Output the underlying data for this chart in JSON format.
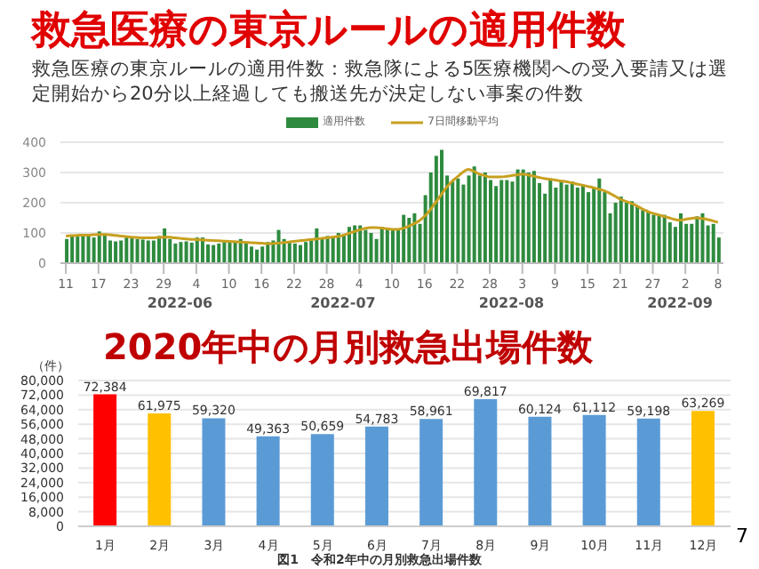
{
  "chart_data": [
    {
      "type": "bar",
      "title": "救急医療の東京ルールの適用件数",
      "subtitle": "救急医療の東京ルールの適用件数：救急隊による5医療機関への受入要請又は選定開始から20分以上経過しても搬送先が決定しない事案の件数",
      "x": [
        "2022-05-11",
        "2022-05-12",
        "2022-05-13",
        "2022-05-14",
        "2022-05-15",
        "2022-05-16",
        "2022-05-17",
        "2022-05-18",
        "2022-05-19",
        "2022-05-20",
        "2022-05-21",
        "2022-05-22",
        "2022-05-23",
        "2022-05-24",
        "2022-05-25",
        "2022-05-26",
        "2022-05-27",
        "2022-05-28",
        "2022-05-29",
        "2022-05-30",
        "2022-05-31",
        "2022-06-01",
        "2022-06-02",
        "2022-06-03",
        "2022-06-04",
        "2022-06-05",
        "2022-06-06",
        "2022-06-07",
        "2022-06-08",
        "2022-06-09",
        "2022-06-10",
        "2022-06-11",
        "2022-06-12",
        "2022-06-13",
        "2022-06-14",
        "2022-06-15",
        "2022-06-16",
        "2022-06-17",
        "2022-06-18",
        "2022-06-19",
        "2022-06-20",
        "2022-06-21",
        "2022-06-22",
        "2022-06-23",
        "2022-06-24",
        "2022-06-25",
        "2022-06-26",
        "2022-06-27",
        "2022-06-28",
        "2022-06-29",
        "2022-06-30",
        "2022-07-01",
        "2022-07-02",
        "2022-07-03",
        "2022-07-04",
        "2022-07-05",
        "2022-07-06",
        "2022-07-07",
        "2022-07-08",
        "2022-07-09",
        "2022-07-10",
        "2022-07-11",
        "2022-07-12",
        "2022-07-13",
        "2022-07-14",
        "2022-07-15",
        "2022-07-16",
        "2022-07-17",
        "2022-07-18",
        "2022-07-19",
        "2022-07-20",
        "2022-07-21",
        "2022-07-22",
        "2022-07-23",
        "2022-07-24",
        "2022-07-25",
        "2022-07-26",
        "2022-07-27",
        "2022-07-28",
        "2022-07-29",
        "2022-07-30",
        "2022-07-31",
        "2022-08-01",
        "2022-08-02",
        "2022-08-03",
        "2022-08-04",
        "2022-08-05",
        "2022-08-06",
        "2022-08-07",
        "2022-08-08",
        "2022-08-09",
        "2022-08-10",
        "2022-08-11",
        "2022-08-12",
        "2022-08-13",
        "2022-08-14",
        "2022-08-15",
        "2022-08-16",
        "2022-08-17",
        "2022-08-18",
        "2022-08-19",
        "2022-08-20",
        "2022-08-21",
        "2022-08-22",
        "2022-08-23",
        "2022-08-24",
        "2022-08-25",
        "2022-08-26",
        "2022-08-27",
        "2022-08-28",
        "2022-08-29",
        "2022-08-30",
        "2022-08-31",
        "2022-09-01",
        "2022-09-02",
        "2022-09-03",
        "2022-09-04",
        "2022-09-05",
        "2022-09-06",
        "2022-09-07",
        "2022-09-08"
      ],
      "series": [
        {
          "name": "適用件数",
          "type": "bar",
          "color": "#2e8b3e",
          "values": [
            80,
            90,
            88,
            90,
            95,
            85,
            105,
            98,
            75,
            72,
            75,
            85,
            85,
            80,
            78,
            75,
            75,
            90,
            115,
            80,
            65,
            70,
            72,
            68,
            85,
            85,
            62,
            60,
            65,
            70,
            75,
            70,
            80,
            65,
            55,
            45,
            55,
            70,
            75,
            110,
            80,
            72,
            65,
            60,
            70,
            75,
            115,
            85,
            90,
            85,
            100,
            95,
            120,
            125,
            125,
            110,
            100,
            80,
            120,
            115,
            115,
            110,
            160,
            150,
            165,
            130,
            225,
            300,
            355,
            375,
            290,
            270,
            280,
            260,
            290,
            320,
            290,
            300,
            275,
            255,
            275,
            275,
            270,
            310,
            310,
            300,
            305,
            265,
            230,
            280,
            250,
            270,
            260,
            270,
            250,
            260,
            235,
            250,
            280,
            235,
            165,
            200,
            220,
            200,
            205,
            190,
            175,
            170,
            160,
            160,
            160,
            135,
            120,
            165,
            130,
            130,
            155,
            165,
            125,
            130,
            85
          ]
        },
        {
          "name": "7日間移動平均",
          "type": "line",
          "color": "#c8a020",
          "values": [
            90,
            91,
            92,
            93,
            93,
            94,
            95,
            95,
            94,
            92,
            90,
            88,
            86,
            85,
            84,
            84,
            84,
            85,
            86,
            86,
            84,
            82,
            80,
            79,
            78,
            77,
            76,
            75,
            74,
            73,
            72,
            71,
            70,
            69,
            68,
            67,
            66,
            65,
            65,
            66,
            68,
            70,
            72,
            74,
            76,
            78,
            80,
            82,
            84,
            86,
            88,
            92,
            98,
            104,
            110,
            115,
            118,
            118,
            116,
            114,
            112,
            112,
            115,
            122,
            130,
            140,
            155,
            175,
            200,
            225,
            250,
            270,
            285,
            300,
            310,
            305,
            295,
            290,
            285,
            285,
            285,
            287,
            290,
            292,
            295,
            292,
            288,
            284,
            280,
            278,
            275,
            272,
            270,
            266,
            262,
            258,
            254,
            250,
            245,
            240,
            232,
            222,
            212,
            205,
            198,
            190,
            180,
            172,
            165,
            160,
            155,
            150,
            145,
            142,
            145,
            148,
            150,
            148,
            145,
            140,
            135
          ]
        }
      ],
      "xlim": [
        "2022-05-10",
        "2022-09-09"
      ],
      "xticks": [
        {
          "value": "2022-05-11",
          "label": "11"
        },
        {
          "value": "2022-05-17",
          "label": "17"
        },
        {
          "value": "2022-05-23",
          "label": "23"
        },
        {
          "value": "2022-05-29",
          "label": "29"
        },
        {
          "value": "2022-06-04",
          "label": "4"
        },
        {
          "value": "2022-06-10",
          "label": "10"
        },
        {
          "value": "2022-06-16",
          "label": "16"
        },
        {
          "value": "2022-06-22",
          "label": "22"
        },
        {
          "value": "2022-06-28",
          "label": "28"
        },
        {
          "value": "2022-07-04",
          "label": "4"
        },
        {
          "value": "2022-07-10",
          "label": "10"
        },
        {
          "value": "2022-07-16",
          "label": "16"
        },
        {
          "value": "2022-07-22",
          "label": "22"
        },
        {
          "value": "2022-07-28",
          "label": "28"
        },
        {
          "value": "2022-08-03",
          "label": "3"
        },
        {
          "value": "2022-08-09",
          "label": "9"
        },
        {
          "value": "2022-08-15",
          "label": "15"
        },
        {
          "value": "2022-08-21",
          "label": "21"
        },
        {
          "value": "2022-08-27",
          "label": "27"
        },
        {
          "value": "2022-09-02",
          "label": "2"
        },
        {
          "value": "2022-09-08",
          "label": "8"
        }
      ],
      "annotations": [
        "2022-06",
        "2022-07",
        "2022-08",
        "2022-09"
      ],
      "ylim": [
        0,
        400
      ],
      "yticks": [
        0,
        100,
        200,
        300,
        400
      ],
      "grid": "y",
      "legend": "top"
    },
    {
      "type": "bar",
      "title": "2020年中の月別救急出場件数",
      "ylabel": "（件）",
      "categories": [
        "1月",
        "2月",
        "3月",
        "4月",
        "5月",
        "6月",
        "7月",
        "8月",
        "9月",
        "10月",
        "11月",
        "12月"
      ],
      "values": [
        72384,
        61975,
        59320,
        49363,
        50659,
        54783,
        58961,
        69817,
        60124,
        61112,
        59198,
        63269
      ],
      "value_labels": [
        "72,384",
        "61,975",
        "59,320",
        "49,363",
        "50,659",
        "54,783",
        "58,961",
        "69,817",
        "60,124",
        "61,112",
        "59,198",
        "63,269"
      ],
      "colors": [
        "#ff0000",
        "#ffc000",
        "#5b9bd5",
        "#5b9bd5",
        "#5b9bd5",
        "#5b9bd5",
        "#5b9bd5",
        "#5b9bd5",
        "#5b9bd5",
        "#5b9bd5",
        "#5b9bd5",
        "#ffc000"
      ],
      "ylim": [
        0,
        80000
      ],
      "yticks": [
        {
          "value": 0,
          "label": "0"
        },
        {
          "value": 8000,
          "label": "8,000"
        },
        {
          "value": 16000,
          "label": "16,000"
        },
        {
          "value": 24000,
          "label": "24,000"
        },
        {
          "value": 32000,
          "label": "32,000"
        },
        {
          "value": 40000,
          "label": "40,000"
        },
        {
          "value": 48000,
          "label": "48,000"
        },
        {
          "value": 56000,
          "label": "56,000"
        },
        {
          "value": 64000,
          "label": "64,000"
        },
        {
          "value": 72000,
          "label": "72,000"
        },
        {
          "value": 80000,
          "label": "80,000"
        }
      ],
      "annotations": [
        "図1　令和2年中の月別救急出場件数",
        "7"
      ],
      "grid": "y"
    }
  ]
}
